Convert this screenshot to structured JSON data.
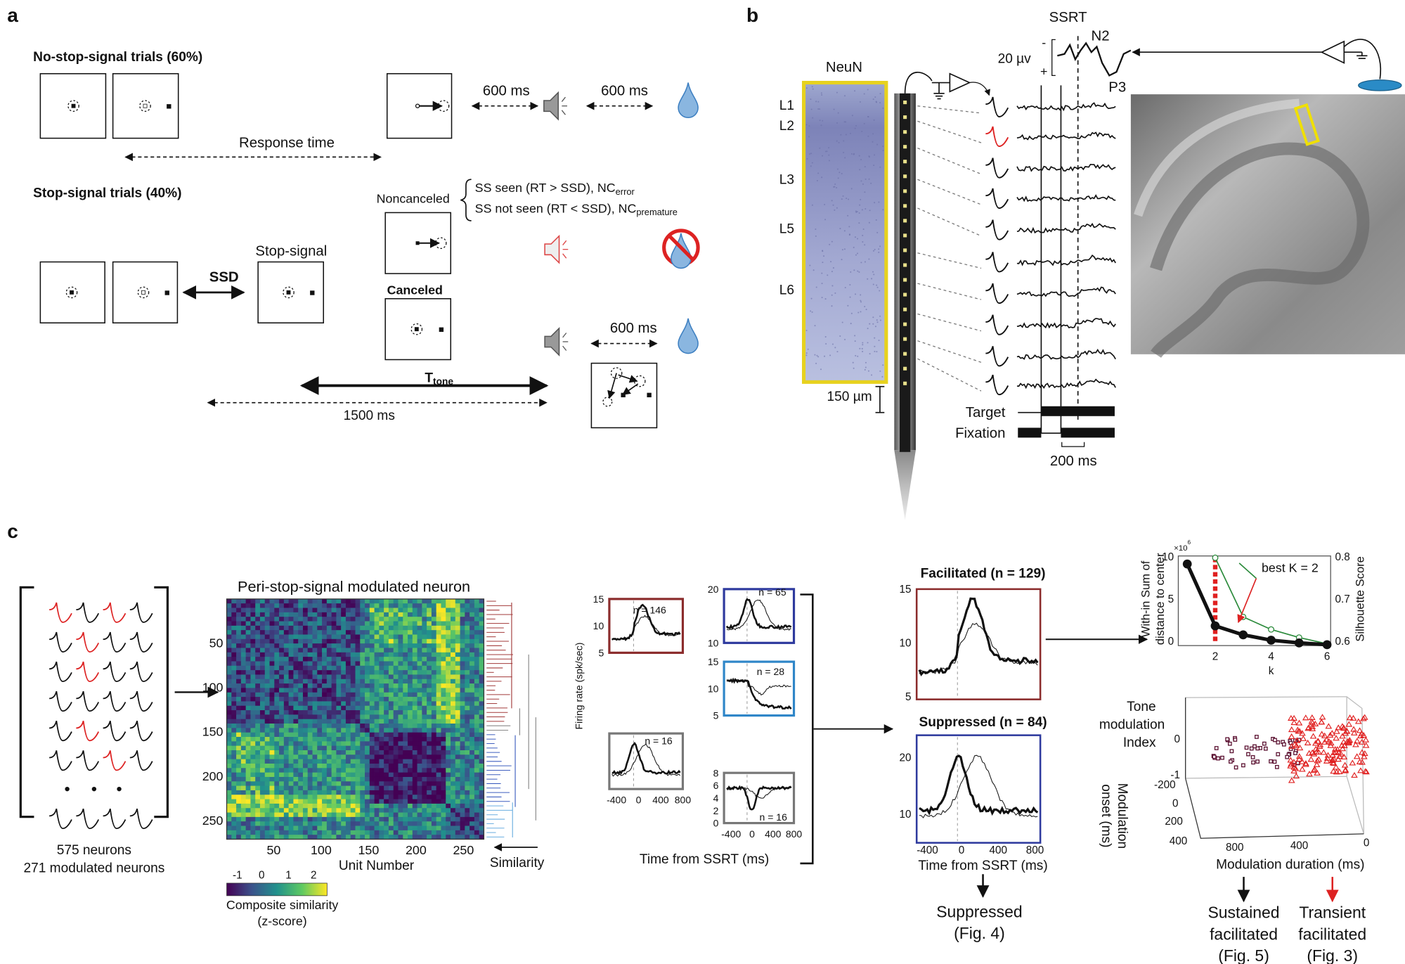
{
  "panel_a": {
    "label": "a",
    "no_stop_title": "No-stop-signal trials (60%)",
    "delay_1": "600 ms",
    "delay_2": "600 ms",
    "response_time": "Response time",
    "stop_title": "Stop-signal trials (40%)",
    "noncanceled": "Noncanceled",
    "ss_seen": "SS seen (RT > SSD), NC",
    "ss_seen_sub": "error",
    "ss_not_seen": "SS not seen (RT < SSD), NC",
    "ss_not_seen_sub": "premature",
    "ssd": "SSD",
    "stop_signal": "Stop-signal",
    "canceled": "Canceled",
    "delay_3": "600 ms",
    "t_tone": "T",
    "t_tone_sub": "tone",
    "duration": "1500 ms"
  },
  "panel_b": {
    "label": "b",
    "stain": "NeuN",
    "layers": [
      "L1",
      "L2",
      "L3",
      "L5",
      "L6"
    ],
    "scale_bar": "150 µm",
    "ssrt": "SSRT",
    "n2": "N2",
    "p3": "P3",
    "amplitude": "20 µv",
    "minus": "-",
    "plus": "+",
    "target": "Target",
    "fixation": "Fixation",
    "time_bar": "200 ms"
  },
  "panel_c": {
    "label": "c",
    "neuron_count": "575 neurons",
    "modulated_count": "271 modulated neurons",
    "heatmap_title": "Peri-stop-signal modulated neuron",
    "heatmap_yticks": [
      "50",
      "100",
      "150",
      "200",
      "250"
    ],
    "heatmap_xticks": [
      "50",
      "100",
      "150",
      "200",
      "250"
    ],
    "heatmap_xlabel": "Unit Number",
    "colorbar_ticks": [
      "-1",
      "0",
      "1",
      "2"
    ],
    "colorbar_label": [
      "Composite similarity",
      "(z-score)"
    ],
    "dendrogram_label": "Similarity",
    "cluster_ylabel": "Firing rate (spk/sec)",
    "cluster_plots": [
      {
        "n": "n = 146",
        "yticks": [
          "15",
          "10",
          "5"
        ]
      },
      {
        "n": "n = 16",
        "yticks": [],
        "xticks": [
          "-400",
          "0",
          "400",
          "800"
        ]
      },
      {
        "n": "n = 65",
        "yticks": [
          "20",
          "10"
        ]
      },
      {
        "n": "n = 28",
        "yticks": [
          "15",
          "10",
          "5"
        ]
      },
      {
        "n": "n = 16",
        "yticks": [
          "8",
          "6",
          "4",
          "2",
          "0"
        ],
        "xticks": [
          "-400",
          "0",
          "400",
          "800"
        ]
      }
    ],
    "cluster_xlabel": "Time from SSRT (ms)",
    "facilitated": {
      "title": "Facilitated (n = 129)",
      "yticks": [
        "15",
        "10",
        "5"
      ]
    },
    "suppressed": {
      "title": "Suppressed (n = 84)",
      "yticks": [
        "20",
        "10"
      ],
      "xticks": [
        "-400",
        "0",
        "400",
        "800"
      ],
      "xlabel": "Time from SSRT (ms)"
    },
    "suppressed_outcome": [
      "Suppressed",
      "(Fig. 4)"
    ],
    "kmeans": {
      "left_ylabel": [
        "With-in Sum of",
        "distance to center"
      ],
      "multiplier": "×10",
      "multiplier_exp": "6",
      "left_yticks": [
        "10",
        "5",
        "0"
      ],
      "right_yticks": [
        "0.8",
        "0.7",
        "0.6"
      ],
      "right_ylabel": "Silhouette Score",
      "xticks": [
        "2",
        "4",
        "6"
      ],
      "xlabel": "k",
      "annotation": "best K = 2"
    },
    "scatter3d": {
      "zlabel": [
        "Tone",
        "modulation",
        "Index"
      ],
      "zticks": [
        "0",
        "-1"
      ],
      "ylabel": [
        "Modulation",
        "onset (ms)"
      ],
      "yticks": [
        "-200",
        "0",
        "200",
        "400"
      ],
      "xticks": [
        "800",
        "400",
        "0"
      ],
      "xlabel": "Modulation duration (ms)"
    },
    "sustained_outcome": [
      "Sustained",
      "facilitated",
      "(Fig. 5)"
    ],
    "transient_outcome": [
      "Transient",
      "facilitated",
      "(Fig. 3)"
    ]
  }
}
